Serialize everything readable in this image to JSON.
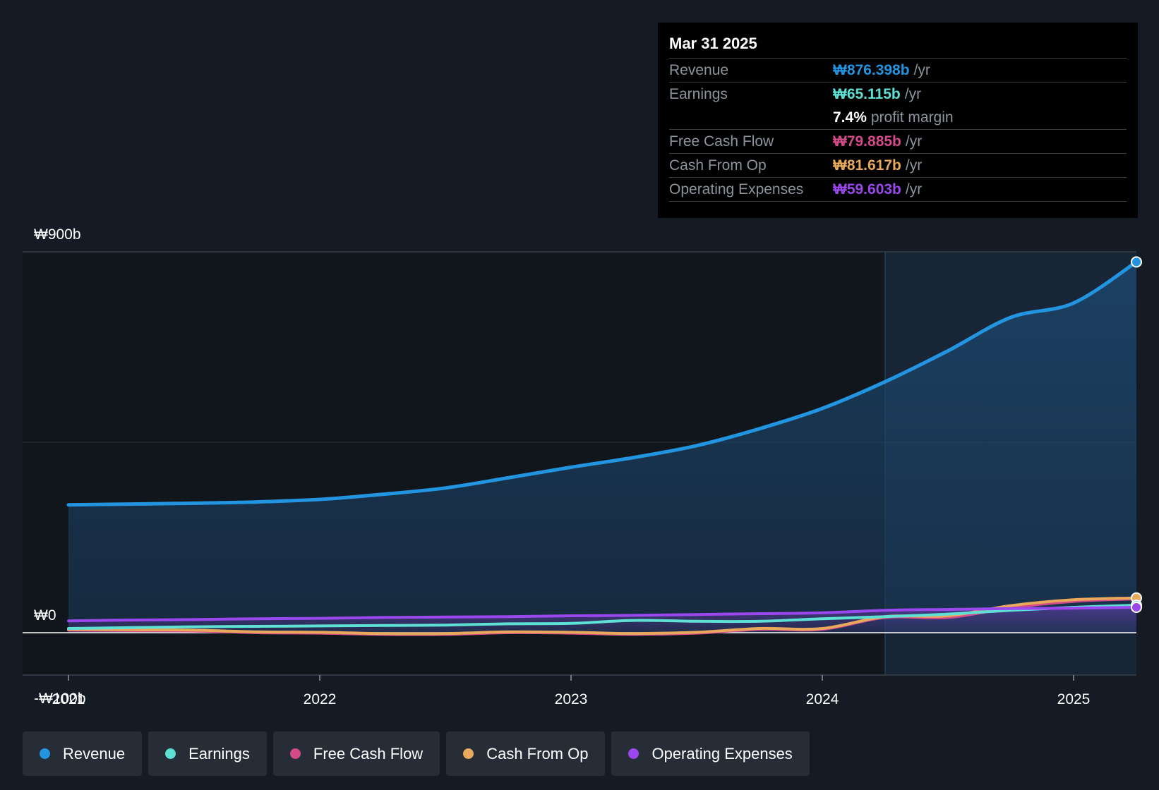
{
  "tooltip": {
    "date": "Mar 31 2025",
    "rows": [
      {
        "label": "Revenue",
        "value": "₩876.398b",
        "unit": "/yr",
        "color": "#2394e0"
      },
      {
        "label": "Earnings",
        "value": "₩65.115b",
        "unit": "/yr",
        "color": "#5fe0d4"
      },
      {
        "label": "",
        "value": "7.4%",
        "unit": "profit margin",
        "color": "#ffffff"
      },
      {
        "label": "Free Cash Flow",
        "value": "₩79.885b",
        "unit": "/yr",
        "color": "#d34a8a"
      },
      {
        "label": "Cash From Op",
        "value": "₩81.617b",
        "unit": "/yr",
        "color": "#e8a95c"
      },
      {
        "label": "Operating Expenses",
        "value": "₩59.603b",
        "unit": "/yr",
        "color": "#9a48ee"
      }
    ]
  },
  "legend": [
    {
      "label": "Revenue",
      "color": "#2394e0"
    },
    {
      "label": "Earnings",
      "color": "#5fe0d4"
    },
    {
      "label": "Free Cash Flow",
      "color": "#d34a8a"
    },
    {
      "label": "Cash From Op",
      "color": "#e8a95c"
    },
    {
      "label": "Operating Expenses",
      "color": "#9a48ee"
    }
  ],
  "chart_data": {
    "type": "line",
    "y_tick_labels": [
      "₩900b",
      "₩0",
      "-₩100b"
    ],
    "ylim": [
      -100,
      900
    ],
    "x_tick_labels": [
      "2021",
      "2022",
      "2023",
      "2024",
      "2025"
    ],
    "xlim": [
      2021.0,
      2025.25
    ],
    "highlight_start": 2024.25,
    "series": [
      {
        "name": "Revenue",
        "color": "#2394e0",
        "x": [
          2021.0,
          2021.25,
          2021.5,
          2021.75,
          2022.0,
          2022.25,
          2022.5,
          2022.75,
          2023.0,
          2023.25,
          2023.5,
          2023.75,
          2024.0,
          2024.25,
          2024.5,
          2024.75,
          2025.0,
          2025.25
        ],
        "values": [
          302,
          304,
          306,
          309,
          315,
          327,
          342,
          366,
          391,
          414,
          442,
          482,
          530,
          593,
          666,
          745,
          779,
          876
        ]
      },
      {
        "name": "Earnings",
        "color": "#5fe0d4",
        "x": [
          2021.0,
          2021.25,
          2021.5,
          2021.75,
          2022.0,
          2022.25,
          2022.5,
          2022.75,
          2023.0,
          2023.25,
          2023.5,
          2023.75,
          2024.0,
          2024.25,
          2024.5,
          2024.75,
          2025.0,
          2025.25
        ],
        "values": [
          10,
          12,
          14,
          15,
          16,
          17,
          18,
          21,
          22,
          29,
          27,
          27,
          33,
          38,
          44,
          53,
          60,
          65
        ]
      },
      {
        "name": "Free Cash Flow",
        "color": "#d34a8a",
        "x": [
          2021.0,
          2021.25,
          2021.5,
          2021.75,
          2022.0,
          2022.25,
          2022.5,
          2022.75,
          2023.0,
          2023.25,
          2023.5,
          2023.75,
          2024.0,
          2024.25,
          2024.5,
          2024.75,
          2025.0,
          2025.25
        ],
        "values": [
          6,
          5,
          4,
          0,
          -1,
          -4,
          -4,
          0,
          -1,
          -4,
          -1,
          8,
          8,
          36,
          36,
          59,
          74,
          80
        ]
      },
      {
        "name": "Cash From Op",
        "color": "#e8a95c",
        "x": [
          2021.0,
          2021.25,
          2021.5,
          2021.75,
          2022.0,
          2022.25,
          2022.5,
          2022.75,
          2023.0,
          2023.25,
          2023.5,
          2023.75,
          2024.0,
          2024.25,
          2024.5,
          2024.75,
          2025.0,
          2025.25
        ],
        "values": [
          8,
          7,
          6,
          2,
          1,
          -2,
          -2,
          2,
          1,
          -2,
          1,
          10,
          10,
          38,
          40,
          64,
          78,
          82
        ]
      },
      {
        "name": "Operating Expenses",
        "color": "#9a48ee",
        "x": [
          2021.0,
          2021.25,
          2021.5,
          2021.75,
          2022.0,
          2022.25,
          2022.5,
          2022.75,
          2023.0,
          2023.25,
          2023.5,
          2023.75,
          2024.0,
          2024.25,
          2024.5,
          2024.75,
          2025.0,
          2025.25
        ],
        "values": [
          28,
          30,
          31,
          33,
          34,
          36,
          37,
          38,
          40,
          41,
          43,
          45,
          47,
          53,
          55,
          57,
          58,
          60
        ]
      }
    ]
  }
}
